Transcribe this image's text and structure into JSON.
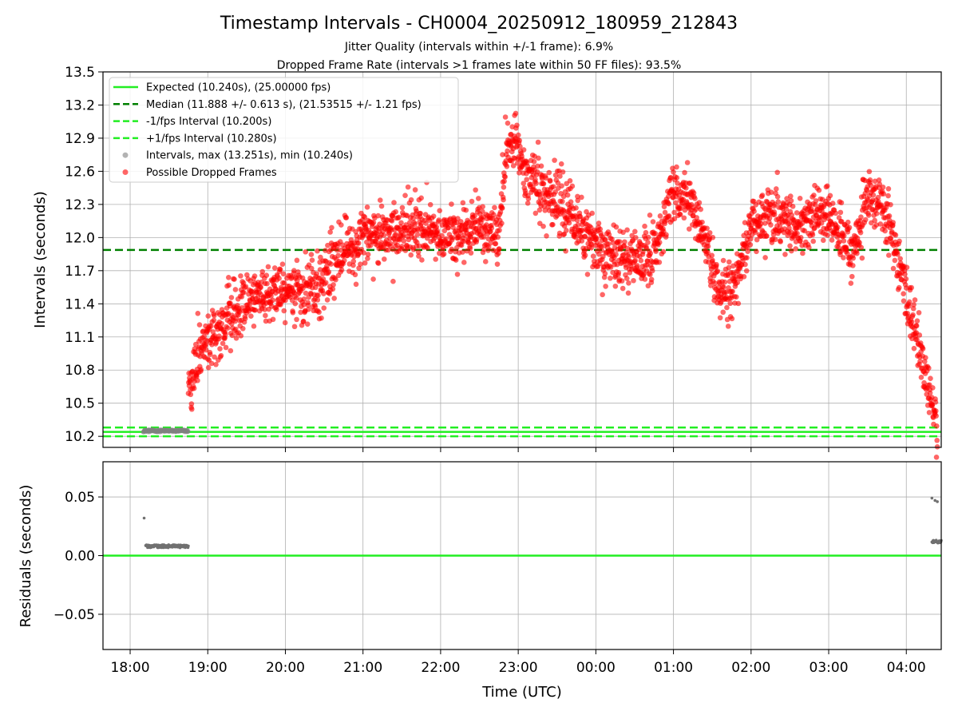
{
  "chart_data": {
    "type": "scatter",
    "title": "Timestamp Intervals - CH0004_20250912_180959_212843",
    "subtitle_lines": [
      "Jitter Quality (intervals within +/-1 frame): 6.9%",
      "Dropped Frame Rate (intervals >1 frames late within 50 FF files): 93.5%"
    ],
    "xlabel": "Time (UTC)",
    "x_tick_labels": [
      "18:00",
      "19:00",
      "20:00",
      "21:00",
      "22:00",
      "23:00",
      "00:00",
      "01:00",
      "02:00",
      "03:00",
      "04:00"
    ],
    "x_range_hours": [
      17.65,
      28.45
    ],
    "grid": true,
    "top_panel": {
      "ylabel": "Intervals (seconds)",
      "ylim": [
        10.1,
        13.5
      ],
      "y_ticks": [
        10.2,
        10.5,
        10.8,
        11.1,
        11.4,
        11.7,
        12.0,
        12.3,
        12.6,
        12.9,
        13.2,
        13.5
      ],
      "y_tick_labels": [
        "10.2",
        "10.5",
        "10.8",
        "11.1",
        "11.4",
        "11.7",
        "12.0",
        "12.3",
        "12.6",
        "12.9",
        "13.2",
        "13.5"
      ],
      "reference_lines": {
        "expected": 10.24,
        "median": 11.888,
        "minus_1fps": 10.2,
        "plus_1fps": 10.28
      },
      "legend": {
        "placement": "upper-left",
        "entries": [
          {
            "label": "Expected (10.240s), (25.00000 fps)",
            "style": "solid",
            "color": "#22ee22"
          },
          {
            "label": "Median (11.888 +/- 0.613 s), (21.53515 +/- 1.21 fps)",
            "style": "dashed",
            "color": "#008000"
          },
          {
            "label": "-1/fps Interval (10.200s)",
            "style": "dashed",
            "color": "#22ee22"
          },
          {
            "label": "+1/fps Interval (10.280s)",
            "style": "dashed",
            "color": "#22ee22"
          },
          {
            "label": "Intervals, max (13.251s), min (10.240s)",
            "style": "marker",
            "color": "#808080"
          },
          {
            "label": "Possible Dropped Frames",
            "style": "marker",
            "color": "#ff0000"
          }
        ]
      },
      "normal_intervals": {
        "time_hours": [
          18.17,
          18.75
        ],
        "value_approx": 10.25
      },
      "dropped_frames_trend": {
        "time_hours": [
          18.75,
          18.9,
          19.1,
          19.4,
          19.7,
          20.0,
          20.3,
          20.6,
          20.9,
          21.2,
          21.6,
          22.0,
          22.3,
          22.6,
          22.75,
          22.85,
          22.95,
          23.1,
          23.3,
          23.5,
          23.8,
          24.1,
          24.4,
          24.7,
          24.9,
          25.0,
          25.2,
          25.4,
          25.6,
          25.8,
          26.0,
          26.3,
          26.6,
          26.9,
          27.1,
          27.3,
          27.5,
          27.65,
          27.8,
          27.95,
          28.1,
          28.2,
          28.3,
          28.4
        ],
        "values": [
          10.6,
          11.0,
          11.15,
          11.35,
          11.5,
          11.55,
          11.5,
          11.75,
          11.95,
          12.05,
          12.1,
          12.0,
          12.05,
          12.1,
          12.0,
          12.8,
          12.9,
          12.55,
          12.45,
          12.3,
          12.1,
          11.85,
          11.8,
          11.8,
          12.2,
          12.45,
          12.35,
          12.0,
          11.5,
          11.55,
          12.15,
          12.2,
          12.1,
          12.25,
          12.1,
          11.85,
          12.35,
          12.3,
          12.1,
          11.6,
          11.2,
          10.9,
          10.6,
          10.3
        ]
      }
    },
    "bottom_panel": {
      "ylabel": "Residuals (seconds)",
      "ylim": [
        -0.08,
        0.08
      ],
      "y_ticks": [
        0.05,
        0.0,
        -0.05
      ],
      "y_tick_labels": [
        "0.05",
        "0.00",
        "−0.05"
      ],
      "zero_line_color": "#22ee22",
      "residual_clusters": [
        {
          "time_hours": [
            18.2,
            18.75
          ],
          "value": 0.008
        },
        {
          "time_hours": [
            28.33,
            28.45
          ],
          "value": 0.012
        }
      ],
      "residual_outliers": [
        {
          "time_hours": 18.18,
          "value": 0.032
        },
        {
          "time_hours": 28.33,
          "value": 0.049
        },
        {
          "time_hours": 28.37,
          "value": 0.047
        },
        {
          "time_hours": 28.4,
          "value": 0.046
        }
      ]
    }
  }
}
